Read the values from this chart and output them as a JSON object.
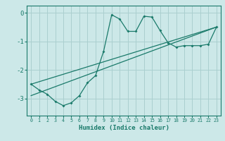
{
  "title": "",
  "xlabel": "Humidex (Indice chaleur)",
  "ylabel": "",
  "bg_color": "#cce8e8",
  "grid_color": "#aacfcf",
  "line_color": "#1a7a6a",
  "xlim": [
    -0.5,
    23.5
  ],
  "ylim": [
    -3.6,
    0.25
  ],
  "yticks": [
    0,
    -1,
    -2,
    -3
  ],
  "xticks": [
    0,
    1,
    2,
    3,
    4,
    5,
    6,
    7,
    8,
    9,
    10,
    11,
    12,
    13,
    14,
    15,
    16,
    17,
    18,
    19,
    20,
    21,
    22,
    23
  ],
  "curve1_x": [
    0,
    1,
    2,
    3,
    4,
    5,
    6,
    7,
    8,
    9,
    10,
    11,
    12,
    13,
    14,
    15,
    16,
    17,
    18,
    19,
    20,
    21,
    22,
    23
  ],
  "curve1_y": [
    -2.5,
    -2.7,
    -2.85,
    -3.1,
    -3.25,
    -3.15,
    -2.9,
    -2.45,
    -2.2,
    -1.35,
    -0.07,
    -0.22,
    -0.65,
    -0.65,
    -0.12,
    -0.15,
    -0.62,
    -1.05,
    -1.2,
    -1.15,
    -1.15,
    -1.15,
    -1.1,
    -0.5
  ],
  "curve2_x": [
    0,
    23
  ],
  "curve2_y": [
    -2.9,
    -0.5
  ],
  "curve3_x": [
    0,
    23
  ],
  "curve3_y": [
    -2.5,
    -0.5
  ]
}
